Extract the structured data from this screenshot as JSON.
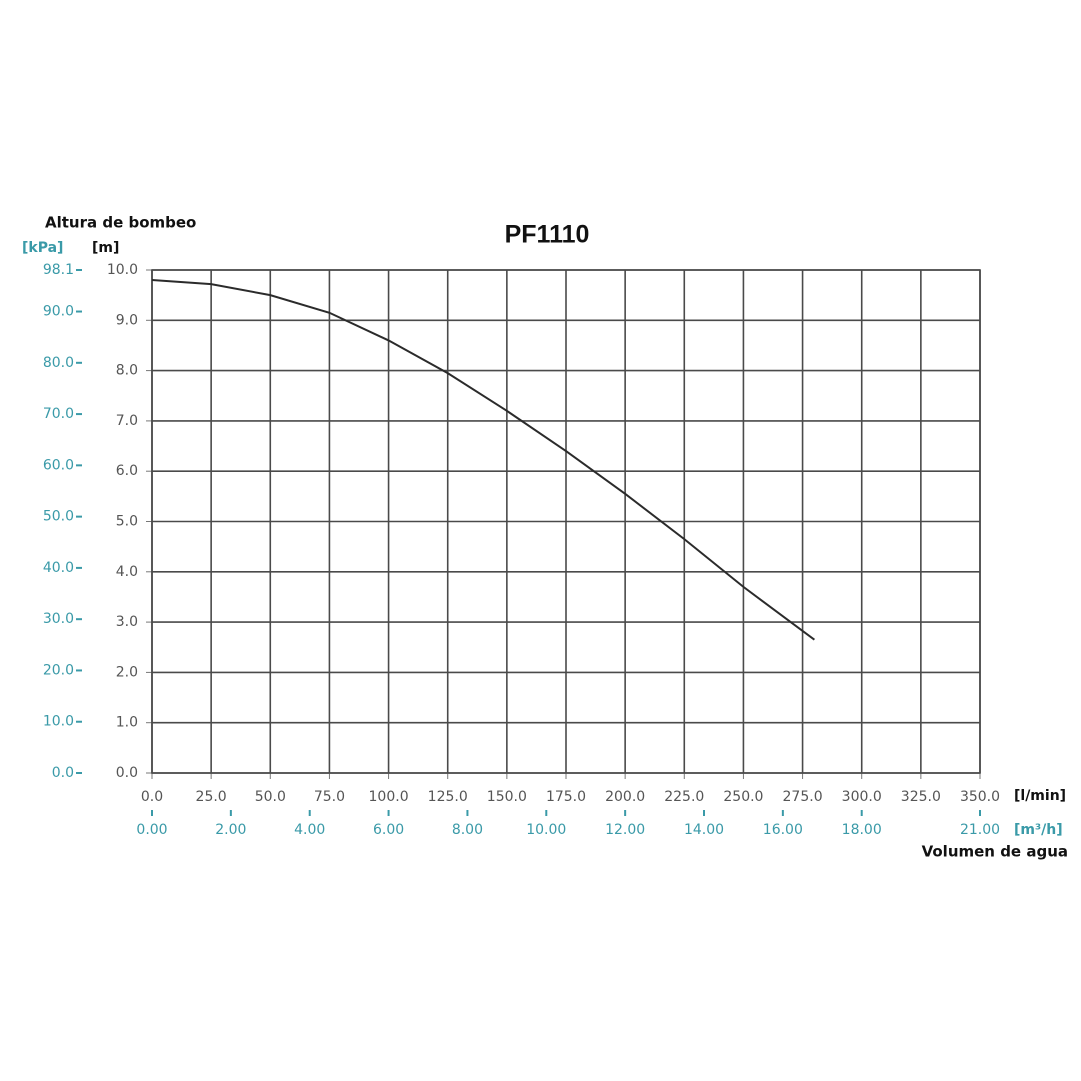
{
  "chart_data": {
    "type": "line",
    "title": "PF1110",
    "y_label": "Altura de bombeo",
    "y_unit": "[m]",
    "y2_unit": "[kPa]",
    "x_label": "Volumen de agua",
    "x_unit": "[l/min]",
    "x2_unit": "[m³/h]",
    "x": [
      0,
      25,
      50,
      75,
      100,
      125,
      150,
      175,
      200,
      225,
      250,
      280
    ],
    "series": [
      {
        "color": "#2b2b2b",
        "values": [
          9.8,
          9.72,
          9.5,
          9.15,
          8.6,
          7.95,
          7.2,
          6.4,
          5.55,
          4.65,
          3.7,
          2.65
        ]
      }
    ],
    "xlim": [
      0,
      350
    ],
    "xticks": [
      {
        "value": 0,
        "label": "0.0"
      },
      {
        "value": 25,
        "label": "25.0"
      },
      {
        "value": 50,
        "label": "50.0"
      },
      {
        "value": 75,
        "label": "75.0"
      },
      {
        "value": 100,
        "label": "100.0"
      },
      {
        "value": 125,
        "label": "125.0"
      },
      {
        "value": 150,
        "label": "150.0"
      },
      {
        "value": 175,
        "label": "175.0"
      },
      {
        "value": 200,
        "label": "200.0"
      },
      {
        "value": 225,
        "label": "225.0"
      },
      {
        "value": 250,
        "label": "250.0"
      },
      {
        "value": 275,
        "label": "275.0"
      },
      {
        "value": 300,
        "label": "300.0"
      },
      {
        "value": 325,
        "label": "325.0"
      },
      {
        "value": 350,
        "label": "350.0"
      }
    ],
    "x2lim": [
      0,
      21
    ],
    "x2ticks": [
      {
        "value": 0,
        "label": "0.00"
      },
      {
        "value": 2,
        "label": "2.00"
      },
      {
        "value": 4,
        "label": "4.00"
      },
      {
        "value": 6,
        "label": "6.00"
      },
      {
        "value": 8,
        "label": "8.00"
      },
      {
        "value": 10,
        "label": "10.00"
      },
      {
        "value": 12,
        "label": "12.00"
      },
      {
        "value": 14,
        "label": "14.00"
      },
      {
        "value": 16,
        "label": "16.00"
      },
      {
        "value": 18,
        "label": "18.00"
      },
      {
        "value": 21,
        "label": "21.00"
      }
    ],
    "ylim": [
      0,
      10
    ],
    "yticks": [
      {
        "value": 0,
        "label": "0.0"
      },
      {
        "value": 1,
        "label": "1.0"
      },
      {
        "value": 2,
        "label": "2.0"
      },
      {
        "value": 3,
        "label": "3.0"
      },
      {
        "value": 4,
        "label": "4.0"
      },
      {
        "value": 5,
        "label": "5.0"
      },
      {
        "value": 6,
        "label": "6.0"
      },
      {
        "value": 7,
        "label": "7.0"
      },
      {
        "value": 8,
        "label": "8.0"
      },
      {
        "value": 9,
        "label": "9.0"
      },
      {
        "value": 10,
        "label": "10.0"
      }
    ],
    "y2lim": [
      0,
      98.1
    ],
    "y2ticks": [
      {
        "value": 0,
        "label": "0.0"
      },
      {
        "value": 10,
        "label": "10.0"
      },
      {
        "value": 20,
        "label": "20.0"
      },
      {
        "value": 30,
        "label": "30.0"
      },
      {
        "value": 40,
        "label": "40.0"
      },
      {
        "value": 50,
        "label": "50.0"
      },
      {
        "value": 60,
        "label": "60.0"
      },
      {
        "value": 70,
        "label": "70.0"
      },
      {
        "value": 80,
        "label": "80.0"
      },
      {
        "value": 90,
        "label": "90.0"
      },
      98.1
    ],
    "grid": true,
    "accent_color": "#3a9aa8",
    "grid_color": "#4a4a4a"
  }
}
